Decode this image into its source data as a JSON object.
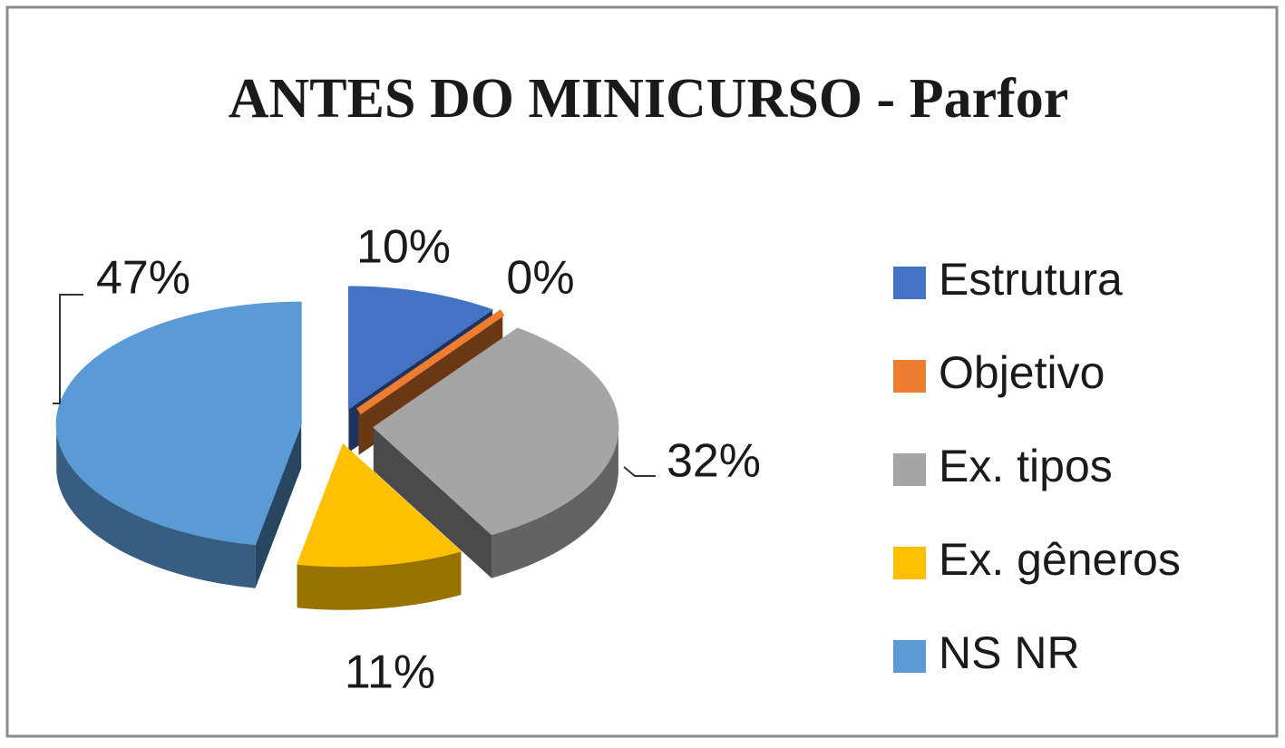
{
  "chart_data": {
    "type": "pie",
    "title": "ANTES DO MINICURSO  - Parfor",
    "categories": [
      "Estrutura",
      "Objetivo",
      "Ex. tipos",
      "Ex. gêneros",
      "NS NR"
    ],
    "values": [
      10,
      0,
      32,
      11,
      47
    ],
    "value_labels": [
      "10%",
      "0%",
      "32%",
      "11%",
      "47%"
    ],
    "colors": [
      "#4472c4",
      "#ed7d31",
      "#a5a5a5",
      "#ffc000",
      "#5b9bd5"
    ],
    "legend": "right"
  }
}
